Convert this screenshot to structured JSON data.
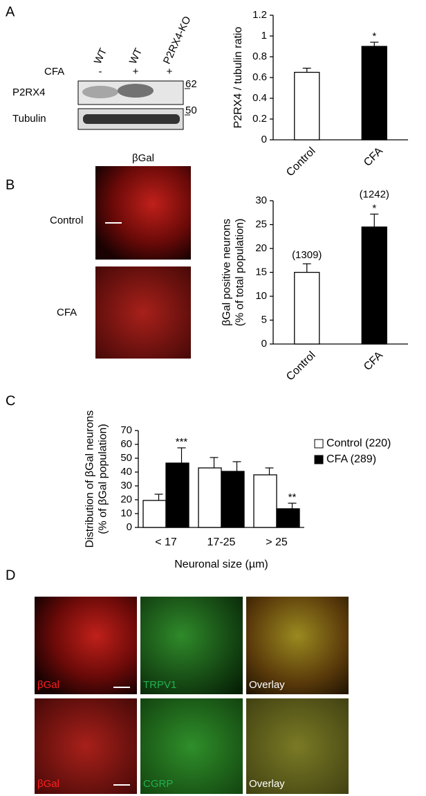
{
  "panel_labels": [
    "A",
    "B",
    "C",
    "D"
  ],
  "blot": {
    "lanes": [
      "WT",
      "WT",
      "P2RX4-KO"
    ],
    "cfa_label": "CFA",
    "cfa": [
      "-",
      "+",
      "+"
    ],
    "rows": [
      "P2RX4",
      "Tubulin"
    ],
    "markers": [
      "62",
      "50"
    ]
  },
  "images_b": {
    "title": "βGal",
    "rows": [
      "Control",
      "CFA"
    ]
  },
  "images_d": {
    "labels": [
      [
        "βGal",
        "TRPV1",
        "Overlay"
      ],
      [
        "βGal",
        "CGRP",
        "Overlay"
      ]
    ]
  },
  "chart_data": [
    {
      "type": "bar",
      "ylabel": [
        "P2RX4 / tubulin ratio"
      ],
      "categories": [
        "Control",
        "CFA"
      ],
      "values": [
        0.65,
        0.9
      ],
      "errors": [
        0.04,
        0.04
      ],
      "colors": [
        "#ffffff",
        "#000000"
      ],
      "annotations": [
        null,
        "*"
      ],
      "ylim": [
        0,
        1.2
      ],
      "yticks": [
        0,
        0.2,
        0.4,
        0.6,
        0.8,
        1,
        1.2
      ]
    },
    {
      "type": "bar",
      "ylabel": [
        "βGal positive neurons",
        "(% of total population)"
      ],
      "categories": [
        "Control",
        "CFA"
      ],
      "values": [
        15,
        24.5
      ],
      "errors": [
        1.8,
        2.7
      ],
      "colors": [
        "#ffffff",
        "#000000"
      ],
      "annotations": [
        null,
        "*"
      ],
      "n_labels": [
        "(1309)",
        "(1242)"
      ],
      "ylim": [
        0,
        30
      ],
      "yticks": [
        0,
        5,
        10,
        15,
        20,
        25,
        30
      ]
    },
    {
      "type": "grouped-bar",
      "ylabel": [
        "Distribution of βGal neurons",
        "(% of βGal population)"
      ],
      "xlabel": "Neuronal size (µm)",
      "categories": [
        "< 17",
        "17-25",
        "> 25"
      ],
      "series": [
        {
          "name": "Control (220)",
          "color": "#ffffff",
          "values": [
            19.5,
            43,
            38
          ],
          "errors": [
            4.5,
            7.5,
            5
          ],
          "annotations": [
            null,
            null,
            null
          ]
        },
        {
          "name": "CFA (289)",
          "color": "#000000",
          "values": [
            46.5,
            40.5,
            13.5
          ],
          "errors": [
            11,
            7,
            4
          ],
          "annotations": [
            "***",
            null,
            "**"
          ]
        }
      ],
      "ylim": [
        0,
        70
      ],
      "yticks": [
        0,
        10,
        20,
        30,
        40,
        50,
        60,
        70
      ]
    }
  ]
}
